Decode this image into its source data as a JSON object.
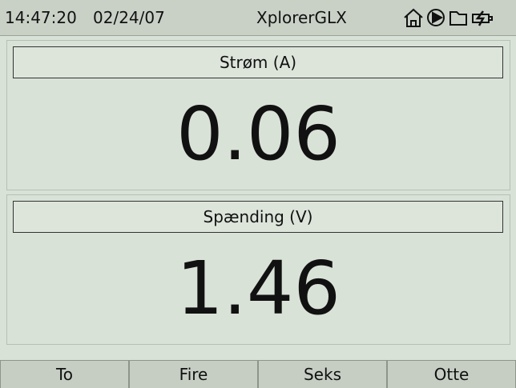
{
  "header": {
    "time": "14:47:20",
    "date": "02/24/07",
    "title": "XplorerGLX"
  },
  "displays": [
    {
      "label": "Strøm (A)",
      "value": "0.06"
    },
    {
      "label": "Spænding (V)",
      "value": "1.46"
    }
  ],
  "buttons": [
    "To",
    "Fire",
    "Seks",
    "Otte"
  ]
}
